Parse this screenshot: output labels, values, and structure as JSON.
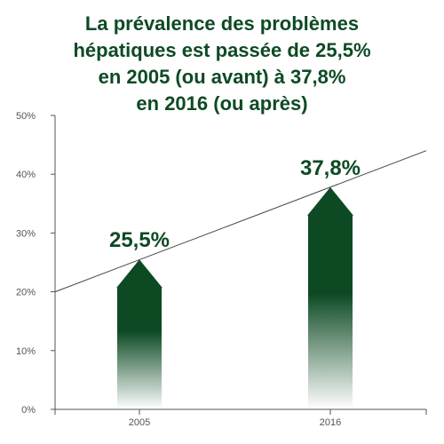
{
  "chart_data": {
    "type": "bar",
    "title_lines": [
      "La prévalence des problèmes",
      "hépatiques est passée de 25,5%",
      "en 2005 (ou avant) à 37,8%",
      "en 2016 (ou après)"
    ],
    "categories": [
      "2005",
      "2016"
    ],
    "values": [
      25.5,
      37.8
    ],
    "data_labels": [
      "25,5%",
      "37,8%"
    ],
    "y_ticks": [
      0,
      10,
      20,
      30,
      40,
      50
    ],
    "y_tick_labels": [
      "0%",
      "10%",
      "20%",
      "30%",
      "40%",
      "50%"
    ],
    "ylim": [
      0,
      50
    ],
    "trend_line": {
      "start_value": 20,
      "end_value": 44
    },
    "grid": false,
    "bar_style": "arrow with gradient fade to bottom",
    "colors": {
      "bar": "#0d4a24",
      "title": "#0d4a24",
      "data_label": "#0d4a24",
      "axis": "#555555",
      "trend_line": "#444444"
    }
  }
}
